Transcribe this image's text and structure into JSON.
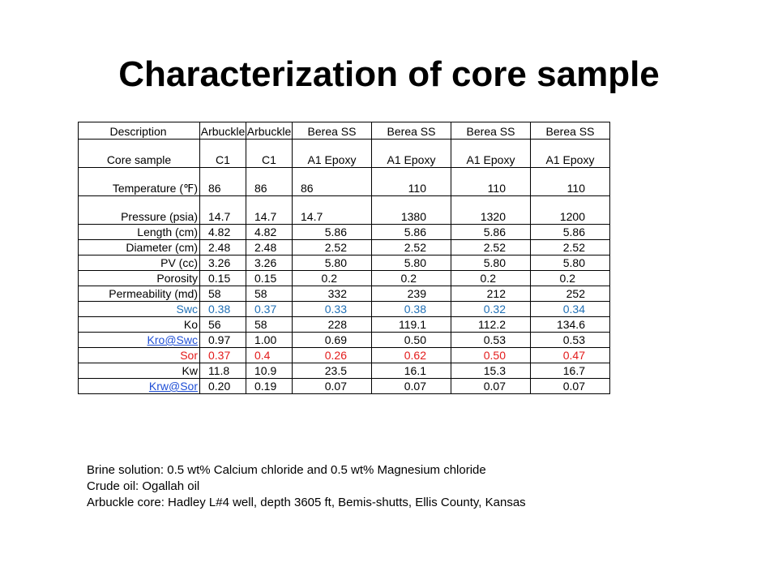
{
  "title": "Characterization of core sample",
  "table": {
    "rows": [
      {
        "label": "Description",
        "values": [
          "Arbuckle",
          "Arbuckle",
          "Berea SS",
          "Berea SS",
          "Berea SS",
          "Berea SS"
        ]
      },
      {
        "label": "Core sample",
        "values": [
          "C1",
          "C1",
          "A1 Epoxy",
          "A1 Epoxy",
          "A1 Epoxy",
          "A1 Epoxy"
        ]
      },
      {
        "label": "Temperature (℉)",
        "values": [
          "86",
          "86",
          "86",
          "110",
          "110",
          "110"
        ]
      },
      {
        "label": "Pressure (psia)",
        "values": [
          "14.7",
          "14.7",
          "14.7",
          "1380",
          "1320",
          "1200"
        ]
      },
      {
        "label": "Length (cm)",
        "values": [
          "4.82",
          "4.82",
          "5.86",
          "5.86",
          "5.86",
          "5.86"
        ]
      },
      {
        "label": "Diameter (cm)",
        "values": [
          "2.48",
          "2.48",
          "2.52",
          "2.52",
          "2.52",
          "2.52"
        ]
      },
      {
        "label": "PV  (cc)",
        "values": [
          "3.26",
          "3.26",
          "5.80",
          "5.80",
          "5.80",
          "5.80"
        ]
      },
      {
        "label": "Porosity",
        "values": [
          "0.15",
          "0.15",
          "0.2",
          "0.2",
          "0.2",
          "0.2"
        ]
      },
      {
        "label": "Permeability (md)",
        "values": [
          "58",
          "58",
          "332",
          "239",
          "212",
          "252"
        ]
      },
      {
        "label": "Swc",
        "values": [
          "0.38",
          "0.37",
          "0.33",
          "0.38",
          "0.32",
          "0.34"
        ]
      },
      {
        "label": "Ko",
        "values": [
          "56",
          "58",
          "228",
          "119.1",
          "112.2",
          "134.6"
        ]
      },
      {
        "label": "Kro@Swc",
        "values": [
          "0.97",
          "1.00",
          "0.69",
          "0.50",
          "0.53",
          "0.53"
        ]
      },
      {
        "label": "Sor",
        "values": [
          "0.37",
          "0.4",
          "0.26",
          "0.62",
          "0.50",
          "0.47"
        ]
      },
      {
        "label": "Kw",
        "values": [
          "11.8",
          "10.9",
          "23.5",
          "16.1",
          "15.3",
          "16.7"
        ]
      },
      {
        "label": "Krw@Sor",
        "values": [
          "0.20",
          "0.19",
          "0.07",
          "0.07",
          "0.07",
          "0.07"
        ]
      }
    ]
  },
  "notes": [
    "Brine solution: 0.5 wt% Calcium chloride and 0.5 wt% Magnesium chloride",
    "Crude oil: Ogallah oil",
    "Arbuckle core: Hadley L#4 well, depth 3605 ft, Bemis-shutts, Ellis County, Kansas"
  ],
  "colors": {
    "swc_row": "#1f6fb5",
    "sor_row": "#e31b1b",
    "link": "#1f4fd6"
  }
}
